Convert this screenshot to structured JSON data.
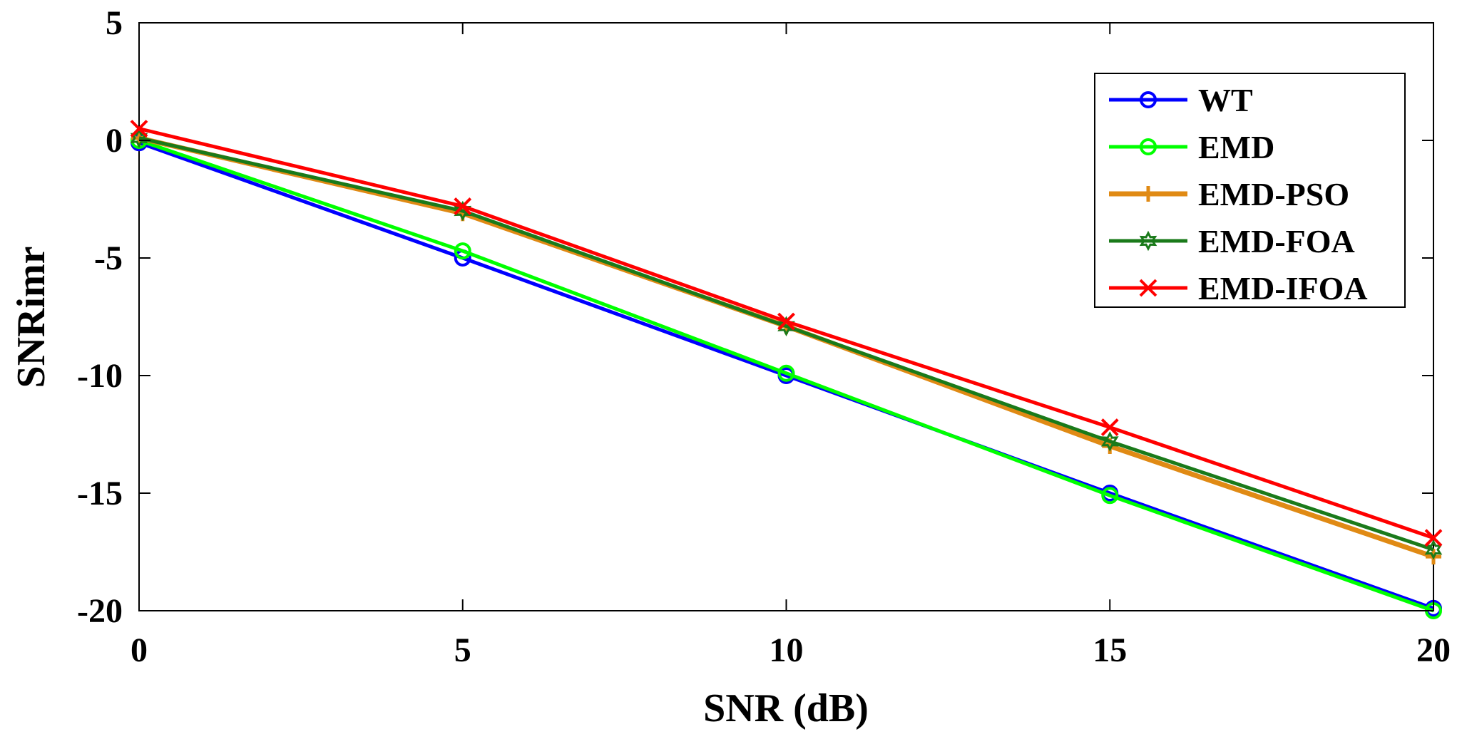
{
  "chart_data": {
    "type": "line",
    "title": "",
    "xlabel": "SNR (dB)",
    "ylabel": "SNRimr",
    "xlim": [
      0,
      20
    ],
    "ylim": [
      -20,
      5
    ],
    "xticks": [
      "0",
      "5",
      "10",
      "15",
      "20"
    ],
    "yticks": [
      "5",
      "0",
      "-5",
      "-10",
      "-15",
      "-20"
    ],
    "x": [
      0,
      5,
      10,
      15,
      20
    ],
    "grid": false,
    "legend_position": "top-right",
    "series": [
      {
        "name": "WT",
        "color": "#0000ff",
        "marker": "circle",
        "values": [
          -0.1,
          -5.0,
          -10.0,
          -15.0,
          -19.9
        ]
      },
      {
        "name": "EMD",
        "color": "#00ff00",
        "marker": "circle",
        "values": [
          0.0,
          -4.7,
          -9.9,
          -15.1,
          -20.0
        ]
      },
      {
        "name": "EMD-PSO",
        "color": "#e08a14",
        "marker": "plus",
        "values": [
          0.1,
          -3.1,
          -7.9,
          -13.0,
          -17.7
        ]
      },
      {
        "name": "EMD-FOA",
        "color": "#1a7a1a",
        "marker": "hexagram",
        "values": [
          0.1,
          -3.0,
          -7.9,
          -12.8,
          -17.4
        ]
      },
      {
        "name": "EMD-IFOA",
        "color": "#ff0000",
        "marker": "x",
        "values": [
          0.5,
          -2.8,
          -7.7,
          -12.2,
          -16.9
        ]
      }
    ]
  }
}
